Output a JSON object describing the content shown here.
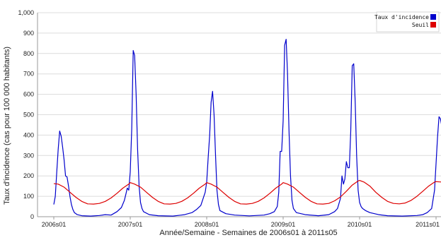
{
  "chart_data": {
    "type": "line",
    "xlabel": "Année/Semaine - Semaines de 2006s01 à 2011s05",
    "ylabel": "Taux d'incidence (cas pour 100 000 habitants)",
    "ylim": [
      0,
      1000
    ],
    "xlim": [
      "2006s01",
      "2011s05"
    ],
    "y_ticks": [
      {
        "value": 0,
        "label": "0"
      },
      {
        "value": 100,
        "label": "100"
      },
      {
        "value": 200,
        "label": "200"
      },
      {
        "value": 300,
        "label": "300"
      },
      {
        "value": 400,
        "label": "400"
      },
      {
        "value": 500,
        "label": "500"
      },
      {
        "value": 600,
        "label": "600"
      },
      {
        "value": 700,
        "label": "700"
      },
      {
        "value": 800,
        "label": "800"
      },
      {
        "value": 900,
        "label": "900"
      },
      {
        "value": 1000,
        "label": "1,000"
      }
    ],
    "x_ticks": [
      "2006s01",
      "2007s01",
      "2008s01",
      "2009s01",
      "2010s01",
      "2011s01"
    ],
    "grid": "horizontal",
    "legend": "top-right",
    "series": [
      {
        "name": "Taux d'incidence",
        "color": "#0000cc",
        "points": [
          [
            "2006s01",
            60
          ],
          [
            "2006s02",
            100
          ],
          [
            "2006s03",
            220
          ],
          [
            "2006s04",
            330
          ],
          [
            "2006s05",
            420
          ],
          [
            "2006s06",
            395
          ],
          [
            "2006s07",
            340
          ],
          [
            "2006s08",
            280
          ],
          [
            "2006s09",
            200
          ],
          [
            "2006s10",
            195
          ],
          [
            "2006s11",
            150
          ],
          [
            "2006s12",
            100
          ],
          [
            "2006s13",
            60
          ],
          [
            "2006s14",
            35
          ],
          [
            "2006s15",
            20
          ],
          [
            "2006s17",
            10
          ],
          [
            "2006s20",
            5
          ],
          [
            "2006s26",
            3
          ],
          [
            "2006s32",
            6
          ],
          [
            "2006s36",
            10
          ],
          [
            "2006s40",
            8
          ],
          [
            "2006s44",
            25
          ],
          [
            "2006s47",
            45
          ],
          [
            "2006s49",
            80
          ],
          [
            "2006s50",
            110
          ],
          [
            "2006s51",
            140
          ],
          [
            "2006s52",
            130
          ],
          [
            "2007s01",
            220
          ],
          [
            "2007s02",
            430
          ],
          [
            "2007s03",
            815
          ],
          [
            "2007s04",
            790
          ],
          [
            "2007s05",
            600
          ],
          [
            "2007s06",
            330
          ],
          [
            "2007s07",
            150
          ],
          [
            "2007s08",
            70
          ],
          [
            "2007s09",
            40
          ],
          [
            "2007s10",
            25
          ],
          [
            "2007s14",
            10
          ],
          [
            "2007s20",
            5
          ],
          [
            "2007s30",
            3
          ],
          [
            "2007s38",
            10
          ],
          [
            "2007s43",
            20
          ],
          [
            "2007s46",
            35
          ],
          [
            "2007s49",
            55
          ],
          [
            "2007s52",
            120
          ],
          [
            "2008s01",
            170
          ],
          [
            "2008s02",
            290
          ],
          [
            "2008s03",
            400
          ],
          [
            "2008s04",
            560
          ],
          [
            "2008s05",
            615
          ],
          [
            "2008s06",
            500
          ],
          [
            "2008s07",
            300
          ],
          [
            "2008s08",
            130
          ],
          [
            "2008s09",
            60
          ],
          [
            "2008s10",
            30
          ],
          [
            "2008s14",
            15
          ],
          [
            "2008s20",
            8
          ],
          [
            "2008s30",
            4
          ],
          [
            "2008s40",
            8
          ],
          [
            "2008s44",
            15
          ],
          [
            "2008s47",
            25
          ],
          [
            "2008s49",
            50
          ],
          [
            "2008s50",
            120
          ],
          [
            "2008s51",
            320
          ],
          [
            "2008s52",
            320
          ],
          [
            "2009s01",
            470
          ],
          [
            "2009s02",
            840
          ],
          [
            "2009s03",
            870
          ],
          [
            "2009s04",
            700
          ],
          [
            "2009s05",
            420
          ],
          [
            "2009s06",
            200
          ],
          [
            "2009s07",
            80
          ],
          [
            "2009s08",
            40
          ],
          [
            "2009s10",
            20
          ],
          [
            "2009s16",
            10
          ],
          [
            "2009s25",
            5
          ],
          [
            "2009s32",
            10
          ],
          [
            "2009s36",
            25
          ],
          [
            "2009s38",
            40
          ],
          [
            "2009s40",
            90
          ],
          [
            "2009s41",
            200
          ],
          [
            "2009s42",
            160
          ],
          [
            "2009s43",
            185
          ],
          [
            "2009s44",
            270
          ],
          [
            "2009s45",
            240
          ],
          [
            "2009s46",
            240
          ],
          [
            "2009s47",
            420
          ],
          [
            "2009s48",
            740
          ],
          [
            "2009s49",
            750
          ],
          [
            "2009s50",
            560
          ],
          [
            "2009s51",
            300
          ],
          [
            "2009s52",
            130
          ],
          [
            "2010s01",
            70
          ],
          [
            "2010s02",
            50
          ],
          [
            "2010s03",
            40
          ],
          [
            "2010s05",
            30
          ],
          [
            "2010s08",
            20
          ],
          [
            "2010s14",
            10
          ],
          [
            "2010s20",
            5
          ],
          [
            "2010s30",
            3
          ],
          [
            "2010s40",
            6
          ],
          [
            "2010s44",
            10
          ],
          [
            "2010s47",
            20
          ],
          [
            "2010s50",
            40
          ],
          [
            "2010s52",
            130
          ],
          [
            "2011s01",
            260
          ],
          [
            "2011s02",
            390
          ],
          [
            "2011s03",
            490
          ],
          [
            "2011s04",
            480
          ],
          [
            "2011s05",
            440
          ]
        ]
      },
      {
        "name": "Seuil",
        "color": "#dd0000",
        "points": [
          [
            "2006s01",
            162
          ],
          [
            "2006s04",
            160
          ],
          [
            "2006s08",
            145
          ],
          [
            "2006s12",
            120
          ],
          [
            "2006s16",
            95
          ],
          [
            "2006s20",
            75
          ],
          [
            "2006s24",
            63
          ],
          [
            "2006s28",
            62
          ],
          [
            "2006s32",
            65
          ],
          [
            "2006s36",
            75
          ],
          [
            "2006s40",
            92
          ],
          [
            "2006s44",
            115
          ],
          [
            "2006s48",
            140
          ],
          [
            "2006s52",
            160
          ],
          [
            "2007s01",
            167
          ],
          [
            "2007s04",
            160
          ],
          [
            "2007s08",
            145
          ],
          [
            "2007s12",
            120
          ],
          [
            "2007s16",
            95
          ],
          [
            "2007s20",
            75
          ],
          [
            "2007s24",
            63
          ],
          [
            "2007s28",
            62
          ],
          [
            "2007s32",
            65
          ],
          [
            "2007s36",
            75
          ],
          [
            "2007s40",
            92
          ],
          [
            "2007s44",
            115
          ],
          [
            "2007s48",
            140
          ],
          [
            "2007s52",
            160
          ],
          [
            "2008s01",
            167
          ],
          [
            "2008s04",
            160
          ],
          [
            "2008s08",
            145
          ],
          [
            "2008s12",
            120
          ],
          [
            "2008s16",
            95
          ],
          [
            "2008s20",
            75
          ],
          [
            "2008s24",
            63
          ],
          [
            "2008s28",
            62
          ],
          [
            "2008s32",
            65
          ],
          [
            "2008s36",
            75
          ],
          [
            "2008s40",
            92
          ],
          [
            "2008s44",
            115
          ],
          [
            "2008s48",
            140
          ],
          [
            "2008s52",
            160
          ],
          [
            "2009s01",
            167
          ],
          [
            "2009s04",
            160
          ],
          [
            "2009s08",
            145
          ],
          [
            "2009s12",
            120
          ],
          [
            "2009s16",
            95
          ],
          [
            "2009s20",
            75
          ],
          [
            "2009s24",
            63
          ],
          [
            "2009s28",
            62
          ],
          [
            "2009s32",
            65
          ],
          [
            "2009s36",
            78
          ],
          [
            "2009s40",
            97
          ],
          [
            "2009s44",
            125
          ],
          [
            "2009s48",
            155
          ],
          [
            "2009s52",
            175
          ],
          [
            "2010s01",
            178
          ],
          [
            "2010s04",
            170
          ],
          [
            "2010s08",
            150
          ],
          [
            "2010s12",
            120
          ],
          [
            "2010s16",
            95
          ],
          [
            "2010s20",
            75
          ],
          [
            "2010s24",
            65
          ],
          [
            "2010s28",
            63
          ],
          [
            "2010s32",
            67
          ],
          [
            "2010s36",
            80
          ],
          [
            "2010s40",
            100
          ],
          [
            "2010s44",
            125
          ],
          [
            "2010s48",
            150
          ],
          [
            "2010s52",
            170
          ],
          [
            "2011s01",
            172
          ],
          [
            "2011s05",
            170
          ]
        ]
      }
    ]
  }
}
